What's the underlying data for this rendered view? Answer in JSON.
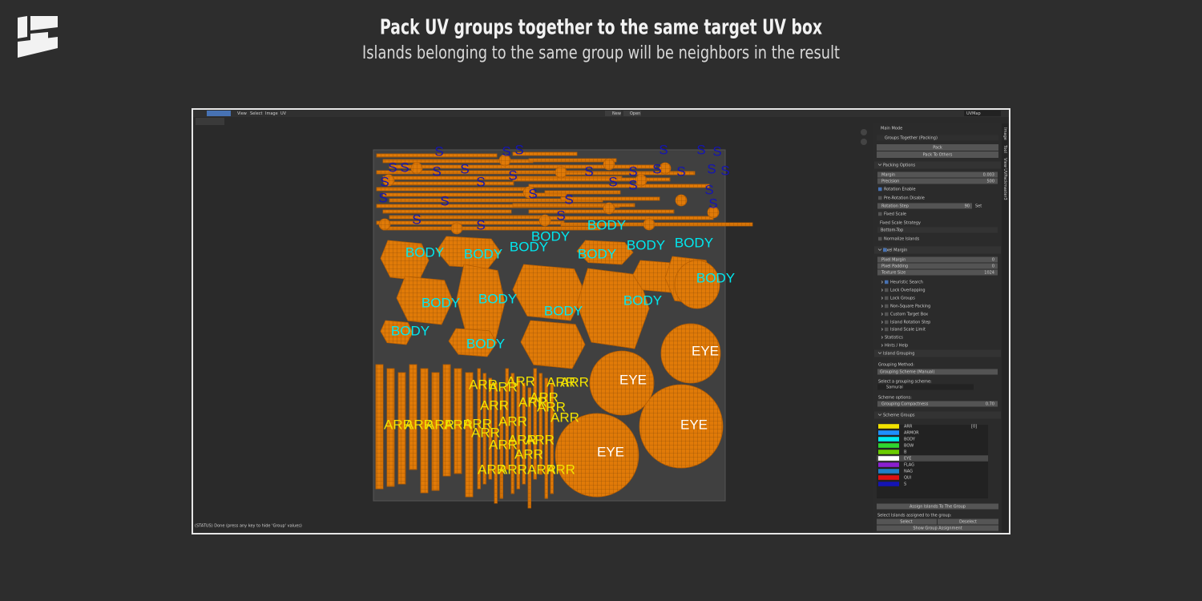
{
  "header": {
    "title": "Pack UV groups together to the same target UV box",
    "subtitle": "Islands belonging to the same group will be neighbors in the result"
  },
  "toolbar": {
    "menus": [
      "View",
      "Select",
      "Image",
      "UV"
    ],
    "new": "New",
    "open": "Open",
    "uv_map": "UVMap"
  },
  "sidebar_tabs": [
    "Image",
    "Tool",
    "View",
    "UVPackmaster3"
  ],
  "status": "(STATUS) Done (press any key to hide 'Group' values)",
  "island_labels": [
    "S",
    "S",
    "S",
    "S",
    "S",
    "S",
    "S",
    "S",
    "S",
    "S",
    "S",
    "S",
    "S",
    "S",
    "S",
    "S",
    "S",
    "S",
    "S",
    "S",
    "S",
    "S",
    "S",
    "S",
    "S",
    "S",
    "S",
    "S",
    "S",
    "S",
    "BODY",
    "BODY",
    "BODY",
    "BODY",
    "BODY",
    "BODY",
    "BODY",
    "BODY",
    "BODY",
    "BODY",
    "BODY",
    "BODY",
    "BODY",
    "BODY",
    "BODY",
    "EYE",
    "EYE",
    "EYE",
    "EYE",
    "ARR",
    "ARR",
    "ARR",
    "ARR",
    "ARR",
    "ARR",
    "ARR",
    "ARR",
    "ARR",
    "ARR",
    "ARR",
    "ARR",
    "ARR",
    "ARR",
    "ARR",
    "ARR",
    "ARR",
    "ARR",
    "ARR",
    "ARR",
    "ARR",
    "ARR",
    "ARR",
    "ARR",
    "ARR"
  ],
  "panel": {
    "main_mode": "Main Mode",
    "mode": "Groups Together (Packing)",
    "pack": "Pack",
    "pack_to_others": "Pack To Others",
    "packing_options": "Packing Options",
    "margin": {
      "label": "Margin",
      "value": "0.003"
    },
    "precision": {
      "label": "Precision",
      "value": "500"
    },
    "rotation_enable": "Rotation Enable",
    "pre_rotation_disable": "Pre-Rotation Disable",
    "rotation_step": {
      "label": "Rotation Step",
      "value": "90"
    },
    "set": "Set",
    "fixed_scale": "Fixed Scale",
    "fixed_scale_strategy": "Fixed Scale Strategy",
    "strategy": "Bottom-Top",
    "normalize_islands": "Normalize Islands",
    "pixel_margin_header": "Pixel Margin",
    "pixel_rows": [
      {
        "label": "Pixel Margin",
        "value": "0"
      },
      {
        "label": "Pixel Padding",
        "value": "0"
      },
      {
        "label": "Texture Size",
        "value": "1024"
      }
    ],
    "subpanels": [
      "Heuristic Search",
      "Lock Overlapping",
      "Lock Groups",
      "Non-Square Packing",
      "Custom Target Box",
      "Island Rotation Step",
      "Island Scale Limit",
      "Statistics",
      "Hints / Help"
    ],
    "island_grouping": "Island Grouping",
    "grouping_method_label": "Grouping Method:",
    "grouping_method": "Grouping Scheme (Manual)",
    "select_scheme_label": "Select a grouping scheme:",
    "scheme": "Samurai",
    "scheme_options": "Scheme options:",
    "compactness": {
      "label": "Grouping Compactness",
      "value": "0.70"
    },
    "scheme_groups": "Scheme Groups",
    "groups": [
      {
        "name": "ARR",
        "color": "#f2e200"
      },
      {
        "name": "ARMOR",
        "color": "#1e90ff"
      },
      {
        "name": "BODY",
        "color": "#00e8f0"
      },
      {
        "name": "BOW",
        "color": "#2fd62f"
      },
      {
        "name": "B",
        "color": "#6acb00"
      },
      {
        "name": "EYE",
        "color": "#ffffff"
      },
      {
        "name": "FLAG",
        "color": "#8a1fd0"
      },
      {
        "name": "NAG",
        "color": "#1f7fc8"
      },
      {
        "name": "QUI",
        "color": "#e01010"
      },
      {
        "name": "S",
        "color": "#1414b4"
      }
    ],
    "group_index": "[0]",
    "assign": "Assign Islands To The Group",
    "select_assigned_label": "Select Islands assigned to the group:",
    "select": "Select",
    "deselect": "Deselect",
    "show_assignment": "Show Group Assignment"
  }
}
